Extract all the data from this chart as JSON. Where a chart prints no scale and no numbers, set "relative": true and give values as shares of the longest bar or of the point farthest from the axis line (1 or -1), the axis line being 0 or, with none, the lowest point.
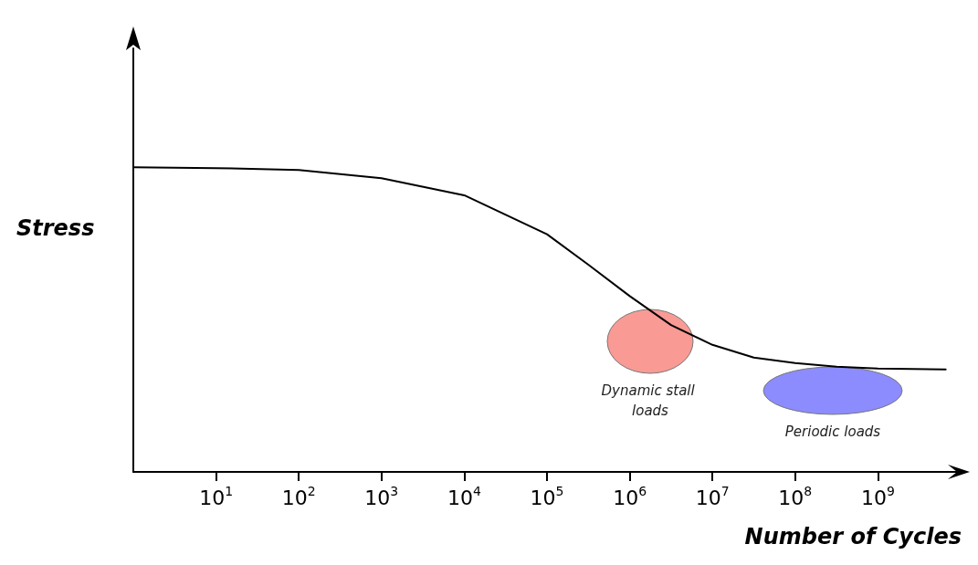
{
  "chart_data": {
    "type": "line",
    "relative": true,
    "xlabel": "Number of Cycles",
    "ylabel": "Stress",
    "log": "x",
    "grid": false,
    "marker": "none",
    "line_style": "solid",
    "xlim": [
      1,
      10000000000
    ],
    "xticks": [
      {
        "value": 10,
        "label": "10$^{1}$"
      },
      {
        "value": 100,
        "label": "10$^{2}$"
      },
      {
        "value": 1000,
        "label": "10$^{3}$"
      },
      {
        "value": 10000,
        "label": "10$^{4}$"
      },
      {
        "value": 100000,
        "label": "10$^{5}$"
      },
      {
        "value": 1000000,
        "label": "10$^{6}$"
      },
      {
        "value": 10000000,
        "label": "10$^{7}$"
      },
      {
        "value": 100000000,
        "label": "10$^{8}$"
      },
      {
        "value": 1000000000,
        "label": "10$^{9}$"
      }
    ],
    "annotations": [
      "Dynamic stall loads",
      "Periodic loads"
    ],
    "series": [
      {
        "color": "#000000",
        "x": [
          1,
          10,
          100,
          1000,
          10000,
          100000,
          316228,
          1000000,
          3162278,
          10000000,
          31622777,
          100000000,
          316227766,
          1000000000,
          6600000000
        ],
        "values": [
          1.0,
          0.997,
          0.991,
          0.964,
          0.908,
          0.78,
          0.68,
          0.577,
          0.482,
          0.417,
          0.375,
          0.357,
          0.345,
          0.339,
          0.336
        ]
      }
    ]
  }
}
